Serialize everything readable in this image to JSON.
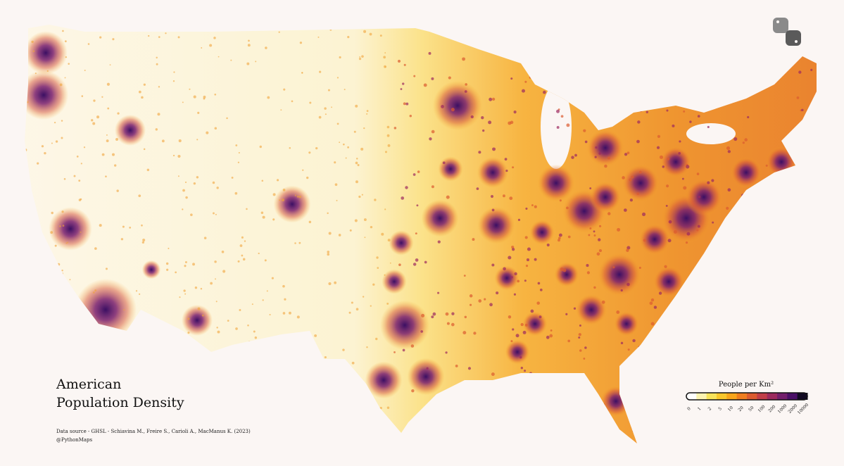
{
  "title": {
    "line1": "American",
    "line2": "Population Density"
  },
  "credits": {
    "source": "Data source - GHSL - Schiavina M., Freire S., Carioli A., MacManus K. (2023)",
    "handle": "@PythonMaps"
  },
  "legend": {
    "title": "People per Km²",
    "ticks": [
      "0",
      "1",
      "2",
      "5",
      "10",
      "20",
      "50",
      "100",
      "200",
      "1000",
      "2000",
      "10000"
    ],
    "colors": [
      "#ffffff",
      "#fcf3b0",
      "#f7e35a",
      "#f9c72c",
      "#f8a51c",
      "#ef7d1f",
      "#dc5b2f",
      "#c13e48",
      "#9c2a5e",
      "#731e6b",
      "#4a0f66",
      "#120a22"
    ]
  }
}
